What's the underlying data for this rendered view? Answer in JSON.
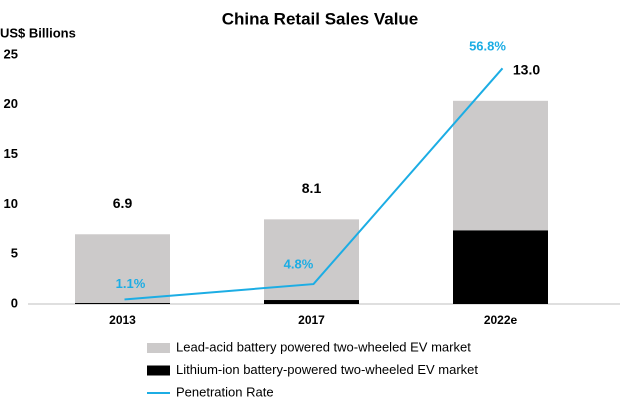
{
  "chart_data": {
    "type": "bar",
    "stacked": true,
    "title": "China Retail Sales Value",
    "y_axis_label": "US$ Billions",
    "categories": [
      "2013",
      "2017",
      "2022e"
    ],
    "series": [
      {
        "name": "Lead-acid battery powered two-wheeled EV market",
        "color": "#cccaca",
        "type": "bar",
        "values": [
          6.9,
          8.1,
          13.0
        ],
        "value_labels": [
          "6.9",
          "8.1",
          "13.0"
        ]
      },
      {
        "name": "Lithium-ion battery-powered two-wheeled EV market",
        "color": "#000000",
        "type": "bar",
        "values": [
          0.1,
          0.4,
          7.4
        ]
      },
      {
        "name": "Penetration Rate",
        "color": "#1cade4",
        "type": "line",
        "axis": "y2",
        "values": [
          1.1,
          4.8,
          56.8
        ],
        "value_labels": [
          "1.1%",
          "4.8%",
          "56.8%"
        ]
      }
    ],
    "ylim": [
      0,
      25
    ],
    "yticks": [
      0,
      5,
      10,
      15,
      20,
      25
    ],
    "y2lim": [
      0,
      60
    ],
    "legend": "bottom",
    "grid": false
  }
}
